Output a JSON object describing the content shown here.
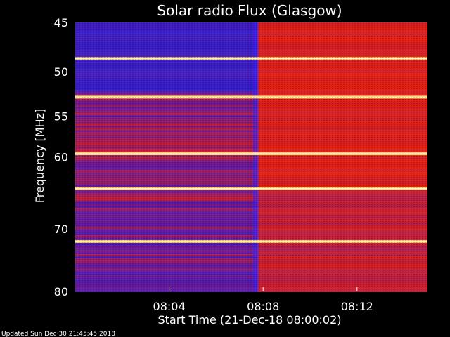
{
  "chart_data": {
    "type": "heatmap",
    "title": "Solar radio Flux (Glasgow)",
    "xlabel": "Start Time (21-Dec-18 08:00:02)",
    "ylabel": "Frequency [MHz]",
    "x_ticks": [
      "08:04",
      "08:08",
      "08:12"
    ],
    "x_tick_minutes": [
      4,
      8,
      12
    ],
    "xlim_minutes": [
      0,
      15
    ],
    "y_ticks": [
      45,
      50,
      55,
      60,
      70,
      80
    ],
    "y_scale": "log",
    "ylim": [
      45,
      80
    ],
    "y_inverted": true,
    "event_onset_minute": 7.75,
    "interference_lines_mhz": [
      48.6,
      52.8,
      59.6,
      64.2,
      71.9
    ],
    "colors": {
      "low": "#2a1fd6",
      "mid": "#6a1a9a",
      "high": "#e8200f",
      "line": "#ffd870"
    }
  },
  "footer": {
    "updated": "Updated Sun Dec 30 21:45:45 2018"
  }
}
